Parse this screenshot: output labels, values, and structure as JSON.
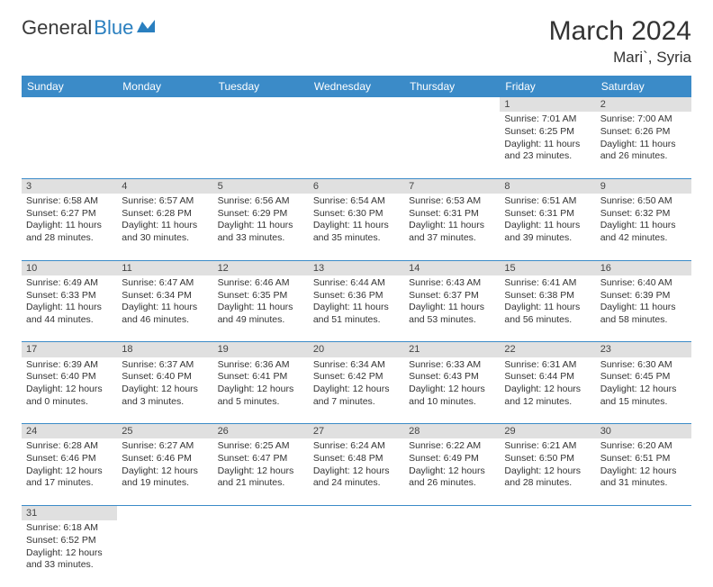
{
  "brand": {
    "name_a": "General",
    "name_b": "Blue"
  },
  "title": "March 2024",
  "location": "Mari`, Syria",
  "colors": {
    "header_bg": "#3b8bc8",
    "header_text": "#ffffff",
    "daynum_bg": "#e0e0e0",
    "border": "#3b8bc8",
    "text": "#333333",
    "brand_blue": "#2a7fbf"
  },
  "weekdays": [
    "Sunday",
    "Monday",
    "Tuesday",
    "Wednesday",
    "Thursday",
    "Friday",
    "Saturday"
  ],
  "weeks": [
    {
      "nums": [
        "",
        "",
        "",
        "",
        "",
        "1",
        "2"
      ],
      "cells": [
        null,
        null,
        null,
        null,
        null,
        {
          "sunrise": "Sunrise: 7:01 AM",
          "sunset": "Sunset: 6:25 PM",
          "d1": "Daylight: 11 hours",
          "d2": "and 23 minutes."
        },
        {
          "sunrise": "Sunrise: 7:00 AM",
          "sunset": "Sunset: 6:26 PM",
          "d1": "Daylight: 11 hours",
          "d2": "and 26 minutes."
        }
      ]
    },
    {
      "nums": [
        "3",
        "4",
        "5",
        "6",
        "7",
        "8",
        "9"
      ],
      "cells": [
        {
          "sunrise": "Sunrise: 6:58 AM",
          "sunset": "Sunset: 6:27 PM",
          "d1": "Daylight: 11 hours",
          "d2": "and 28 minutes."
        },
        {
          "sunrise": "Sunrise: 6:57 AM",
          "sunset": "Sunset: 6:28 PM",
          "d1": "Daylight: 11 hours",
          "d2": "and 30 minutes."
        },
        {
          "sunrise": "Sunrise: 6:56 AM",
          "sunset": "Sunset: 6:29 PM",
          "d1": "Daylight: 11 hours",
          "d2": "and 33 minutes."
        },
        {
          "sunrise": "Sunrise: 6:54 AM",
          "sunset": "Sunset: 6:30 PM",
          "d1": "Daylight: 11 hours",
          "d2": "and 35 minutes."
        },
        {
          "sunrise": "Sunrise: 6:53 AM",
          "sunset": "Sunset: 6:31 PM",
          "d1": "Daylight: 11 hours",
          "d2": "and 37 minutes."
        },
        {
          "sunrise": "Sunrise: 6:51 AM",
          "sunset": "Sunset: 6:31 PM",
          "d1": "Daylight: 11 hours",
          "d2": "and 39 minutes."
        },
        {
          "sunrise": "Sunrise: 6:50 AM",
          "sunset": "Sunset: 6:32 PM",
          "d1": "Daylight: 11 hours",
          "d2": "and 42 minutes."
        }
      ]
    },
    {
      "nums": [
        "10",
        "11",
        "12",
        "13",
        "14",
        "15",
        "16"
      ],
      "cells": [
        {
          "sunrise": "Sunrise: 6:49 AM",
          "sunset": "Sunset: 6:33 PM",
          "d1": "Daylight: 11 hours",
          "d2": "and 44 minutes."
        },
        {
          "sunrise": "Sunrise: 6:47 AM",
          "sunset": "Sunset: 6:34 PM",
          "d1": "Daylight: 11 hours",
          "d2": "and 46 minutes."
        },
        {
          "sunrise": "Sunrise: 6:46 AM",
          "sunset": "Sunset: 6:35 PM",
          "d1": "Daylight: 11 hours",
          "d2": "and 49 minutes."
        },
        {
          "sunrise": "Sunrise: 6:44 AM",
          "sunset": "Sunset: 6:36 PM",
          "d1": "Daylight: 11 hours",
          "d2": "and 51 minutes."
        },
        {
          "sunrise": "Sunrise: 6:43 AM",
          "sunset": "Sunset: 6:37 PM",
          "d1": "Daylight: 11 hours",
          "d2": "and 53 minutes."
        },
        {
          "sunrise": "Sunrise: 6:41 AM",
          "sunset": "Sunset: 6:38 PM",
          "d1": "Daylight: 11 hours",
          "d2": "and 56 minutes."
        },
        {
          "sunrise": "Sunrise: 6:40 AM",
          "sunset": "Sunset: 6:39 PM",
          "d1": "Daylight: 11 hours",
          "d2": "and 58 minutes."
        }
      ]
    },
    {
      "nums": [
        "17",
        "18",
        "19",
        "20",
        "21",
        "22",
        "23"
      ],
      "cells": [
        {
          "sunrise": "Sunrise: 6:39 AM",
          "sunset": "Sunset: 6:40 PM",
          "d1": "Daylight: 12 hours",
          "d2": "and 0 minutes."
        },
        {
          "sunrise": "Sunrise: 6:37 AM",
          "sunset": "Sunset: 6:40 PM",
          "d1": "Daylight: 12 hours",
          "d2": "and 3 minutes."
        },
        {
          "sunrise": "Sunrise: 6:36 AM",
          "sunset": "Sunset: 6:41 PM",
          "d1": "Daylight: 12 hours",
          "d2": "and 5 minutes."
        },
        {
          "sunrise": "Sunrise: 6:34 AM",
          "sunset": "Sunset: 6:42 PM",
          "d1": "Daylight: 12 hours",
          "d2": "and 7 minutes."
        },
        {
          "sunrise": "Sunrise: 6:33 AM",
          "sunset": "Sunset: 6:43 PM",
          "d1": "Daylight: 12 hours",
          "d2": "and 10 minutes."
        },
        {
          "sunrise": "Sunrise: 6:31 AM",
          "sunset": "Sunset: 6:44 PM",
          "d1": "Daylight: 12 hours",
          "d2": "and 12 minutes."
        },
        {
          "sunrise": "Sunrise: 6:30 AM",
          "sunset": "Sunset: 6:45 PM",
          "d1": "Daylight: 12 hours",
          "d2": "and 15 minutes."
        }
      ]
    },
    {
      "nums": [
        "24",
        "25",
        "26",
        "27",
        "28",
        "29",
        "30"
      ],
      "cells": [
        {
          "sunrise": "Sunrise: 6:28 AM",
          "sunset": "Sunset: 6:46 PM",
          "d1": "Daylight: 12 hours",
          "d2": "and 17 minutes."
        },
        {
          "sunrise": "Sunrise: 6:27 AM",
          "sunset": "Sunset: 6:46 PM",
          "d1": "Daylight: 12 hours",
          "d2": "and 19 minutes."
        },
        {
          "sunrise": "Sunrise: 6:25 AM",
          "sunset": "Sunset: 6:47 PM",
          "d1": "Daylight: 12 hours",
          "d2": "and 21 minutes."
        },
        {
          "sunrise": "Sunrise: 6:24 AM",
          "sunset": "Sunset: 6:48 PM",
          "d1": "Daylight: 12 hours",
          "d2": "and 24 minutes."
        },
        {
          "sunrise": "Sunrise: 6:22 AM",
          "sunset": "Sunset: 6:49 PM",
          "d1": "Daylight: 12 hours",
          "d2": "and 26 minutes."
        },
        {
          "sunrise": "Sunrise: 6:21 AM",
          "sunset": "Sunset: 6:50 PM",
          "d1": "Daylight: 12 hours",
          "d2": "and 28 minutes."
        },
        {
          "sunrise": "Sunrise: 6:20 AM",
          "sunset": "Sunset: 6:51 PM",
          "d1": "Daylight: 12 hours",
          "d2": "and 31 minutes."
        }
      ]
    },
    {
      "nums": [
        "31",
        "",
        "",
        "",
        "",
        "",
        ""
      ],
      "cells": [
        {
          "sunrise": "Sunrise: 6:18 AM",
          "sunset": "Sunset: 6:52 PM",
          "d1": "Daylight: 12 hours",
          "d2": "and 33 minutes."
        },
        null,
        null,
        null,
        null,
        null,
        null
      ]
    }
  ]
}
